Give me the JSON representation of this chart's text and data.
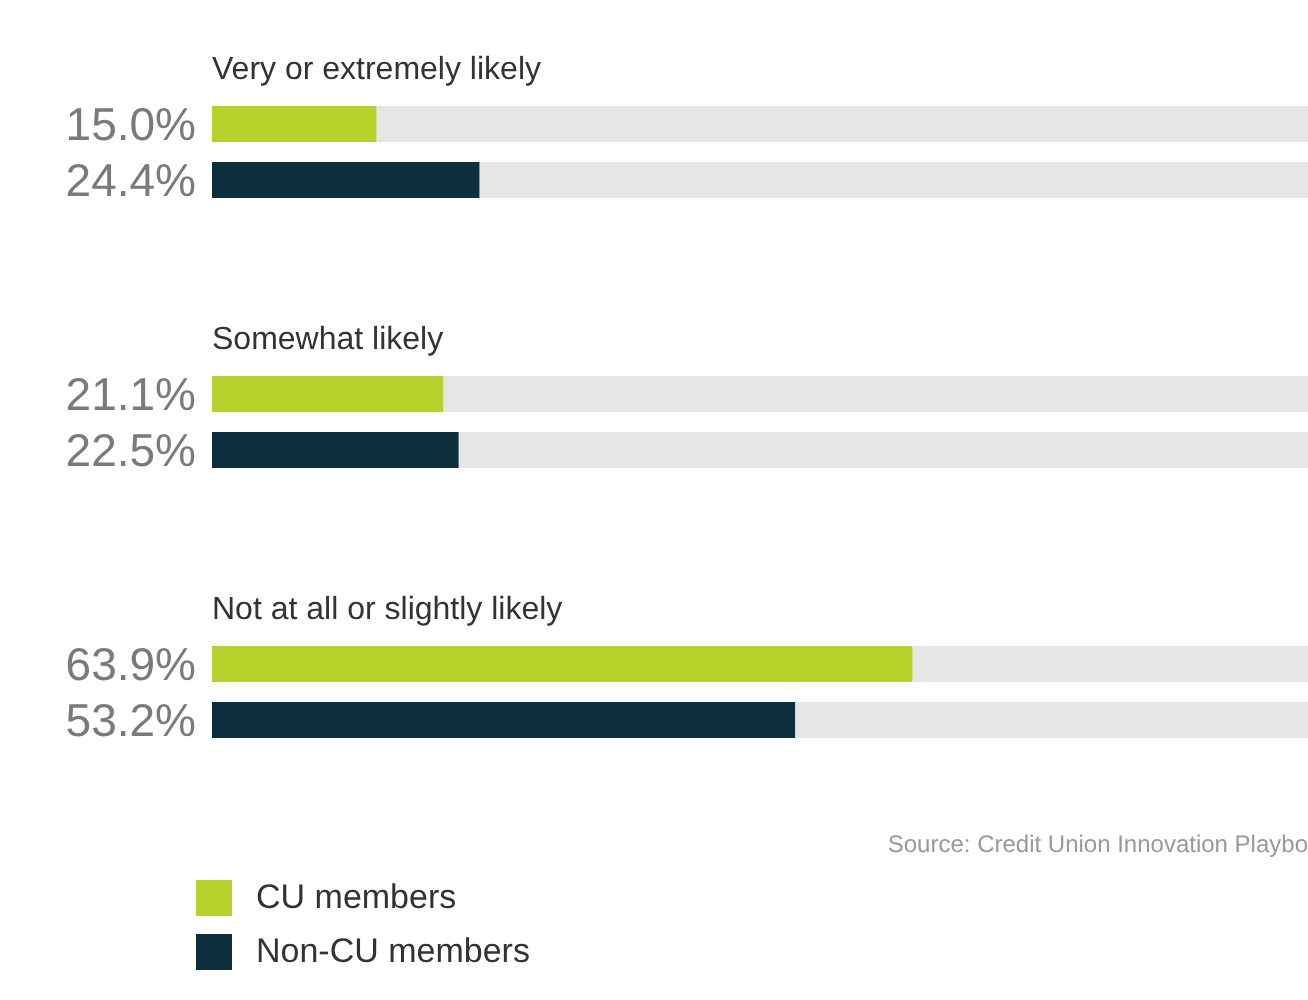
{
  "chart_data": {
    "type": "bar",
    "orientation": "horizontal",
    "categories": [
      "Very or extremely likely",
      "Somewhat likely",
      "Not at all or slightly likely"
    ],
    "series": [
      {
        "name": "CU members",
        "color": "#b8d22b",
        "values": [
          15.0,
          21.1,
          63.9
        ],
        "value_labels": [
          "15.0%",
          "21.1%",
          "63.9%"
        ]
      },
      {
        "name": "Non-CU members",
        "color": "#0e2f3d",
        "values": [
          24.4,
          22.5,
          53.2
        ],
        "value_labels": [
          "24.4%",
          "22.5%",
          "53.2%"
        ]
      }
    ],
    "xlim": [
      0,
      100
    ],
    "legend": "bottom left",
    "annotations": [
      "Source: Credit Union Innovation Playbo"
    ]
  }
}
